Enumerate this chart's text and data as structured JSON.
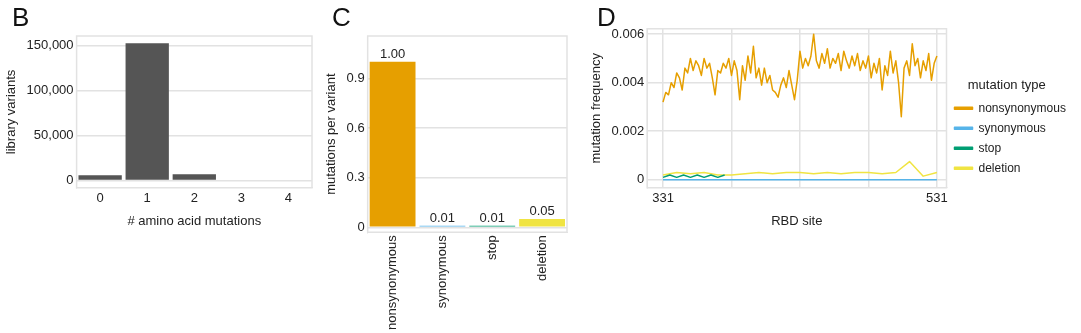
{
  "chart_data": [
    {
      "type": "bar",
      "title": "B",
      "xlabel": "# amino acid mutations",
      "ylabel": "library variants",
      "categories": [
        "0",
        "1",
        "2",
        "3",
        "4"
      ],
      "values": [
        6000,
        153000,
        7000,
        0,
        0
      ],
      "color": "#555555",
      "ylim": [
        -8000,
        161000
      ],
      "yticks": [
        {
          "value": 0,
          "label": "0"
        },
        {
          "value": 50000,
          "label": "50,000"
        },
        {
          "value": 100000,
          "label": "100,000"
        },
        {
          "value": 150000,
          "label": "150,000"
        }
      ],
      "grid": "y"
    },
    {
      "type": "bar",
      "title": "C",
      "ylabel": "mutations per variant",
      "categories": [
        "nonsynonymous",
        "synonymous",
        "stop",
        "deletion"
      ],
      "values": [
        1.0,
        0.01,
        0.01,
        0.05
      ],
      "value_labels": [
        "1.00",
        "0.01",
        "0.01",
        "0.05"
      ],
      "colors": [
        "#e69f00",
        "#56b4e9",
        "#009e73",
        "#f0e442"
      ],
      "ylim": [
        -0.03,
        1.156
      ],
      "yticks": [
        0,
        0.3,
        0.6,
        0.9
      ],
      "grid": "y"
    },
    {
      "type": "line",
      "title": "D",
      "xlabel": "RBD site",
      "ylabel": "mutation frequency",
      "legend_title": "mutation type",
      "legend": "right",
      "marker": "none",
      "grid": true,
      "xlim": [
        319.4,
        538
      ],
      "xticks": [
        331,
        {
          "value": 381,
          "label": null
        },
        {
          "value": 431,
          "label": null
        },
        {
          "value": 481,
          "label": null
        },
        531
      ],
      "ylim": [
        -0.00033,
        0.00622
      ],
      "yticks": [
        0,
        0.002,
        0.004,
        0.006
      ],
      "series": [
        {
          "name": "nonsynonymous",
          "color": "#e69f00",
          "x": [
            331,
            333,
            335,
            337,
            339,
            341,
            343,
            345,
            347,
            349,
            351,
            353,
            355,
            357,
            359,
            361,
            363,
            365,
            367,
            369,
            371,
            373,
            375,
            377,
            379,
            381,
            383,
            385,
            387,
            389,
            391,
            393,
            395,
            397,
            399,
            401,
            403,
            405,
            407,
            409,
            411,
            413,
            415,
            417,
            419,
            421,
            423,
            425,
            427,
            429,
            431,
            433,
            435,
            437,
            439,
            441,
            443,
            445,
            447,
            449,
            451,
            453,
            455,
            457,
            459,
            461,
            463,
            465,
            467,
            469,
            471,
            473,
            475,
            477,
            479,
            481,
            483,
            485,
            487,
            489,
            491,
            493,
            495,
            497,
            499,
            501,
            503,
            505,
            507,
            509,
            511,
            513,
            515,
            517,
            519,
            521,
            523,
            525,
            527,
            529,
            531
          ],
          "values": [
            0.0032,
            0.0036,
            0.0035,
            0.004,
            0.0038,
            0.0044,
            0.0042,
            0.0037,
            0.0046,
            0.0044,
            0.005,
            0.0045,
            0.0049,
            0.0047,
            0.0043,
            0.005,
            0.0046,
            0.0048,
            0.0042,
            0.0035,
            0.0045,
            0.0044,
            0.0048,
            0.0046,
            0.005,
            0.0043,
            0.0049,
            0.0045,
            0.0033,
            0.0047,
            0.0041,
            0.0051,
            0.0044,
            0.0055,
            0.0042,
            0.0046,
            0.0039,
            0.0046,
            0.004,
            0.0043,
            0.0037,
            0.0036,
            0.0034,
            0.0039,
            0.0042,
            0.0038,
            0.0045,
            0.0039,
            0.0033,
            0.0041,
            0.0053,
            0.0046,
            0.005,
            0.0047,
            0.0051,
            0.006,
            0.0049,
            0.0046,
            0.0052,
            0.0048,
            0.0054,
            0.0046,
            0.005,
            0.0048,
            0.0052,
            0.0045,
            0.0053,
            0.0049,
            0.0046,
            0.0051,
            0.0047,
            0.0052,
            0.0045,
            0.0049,
            0.0046,
            0.0051,
            0.0042,
            0.0048,
            0.0044,
            0.005,
            0.0037,
            0.0047,
            0.0043,
            0.0053,
            0.0044,
            0.0049,
            0.004,
            0.0026,
            0.0046,
            0.0049,
            0.0043,
            0.0056,
            0.0047,
            0.005,
            0.0042,
            0.0049,
            0.0045,
            0.0052,
            0.0041,
            0.0048,
            0.0051
          ]
        },
        {
          "name": "synonymous",
          "color": "#56b4e9",
          "x": [
            331,
            341,
            351,
            361,
            371,
            381,
            391,
            401,
            411,
            421,
            431,
            441,
            451,
            461,
            471,
            481,
            491,
            501,
            511,
            521,
            531
          ],
          "values": [
            0,
            0,
            0,
            0,
            0,
            0,
            0,
            0,
            0,
            0,
            0,
            0,
            0,
            0,
            0,
            0,
            0,
            0,
            0,
            0,
            0
          ]
        },
        {
          "name": "stop",
          "color": "#009e73",
          "x": [
            331,
            336,
            341,
            346,
            351,
            356,
            361,
            366,
            371,
            376
          ],
          "values": [
            0.0001,
            0.0002,
            0.0001,
            0.0002,
            0.0001,
            0.0002,
            0.0001,
            0.0002,
            0.0001,
            0.0002
          ]
        },
        {
          "name": "deletion",
          "color": "#f0e442",
          "x": [
            331,
            341,
            351,
            361,
            371,
            381,
            391,
            401,
            411,
            421,
            431,
            441,
            451,
            461,
            471,
            481,
            491,
            501,
            511,
            521,
            531
          ],
          "values": [
            0.0002,
            0.0003,
            0.00025,
            0.0003,
            0.0002,
            0.0002,
            0.00025,
            0.0003,
            0.00025,
            0.0003,
            0.0003,
            0.00025,
            0.0003,
            0.00025,
            0.0003,
            0.0003,
            0.00025,
            0.0003,
            0.00075,
            0.00015,
            0.0003
          ]
        }
      ]
    }
  ]
}
